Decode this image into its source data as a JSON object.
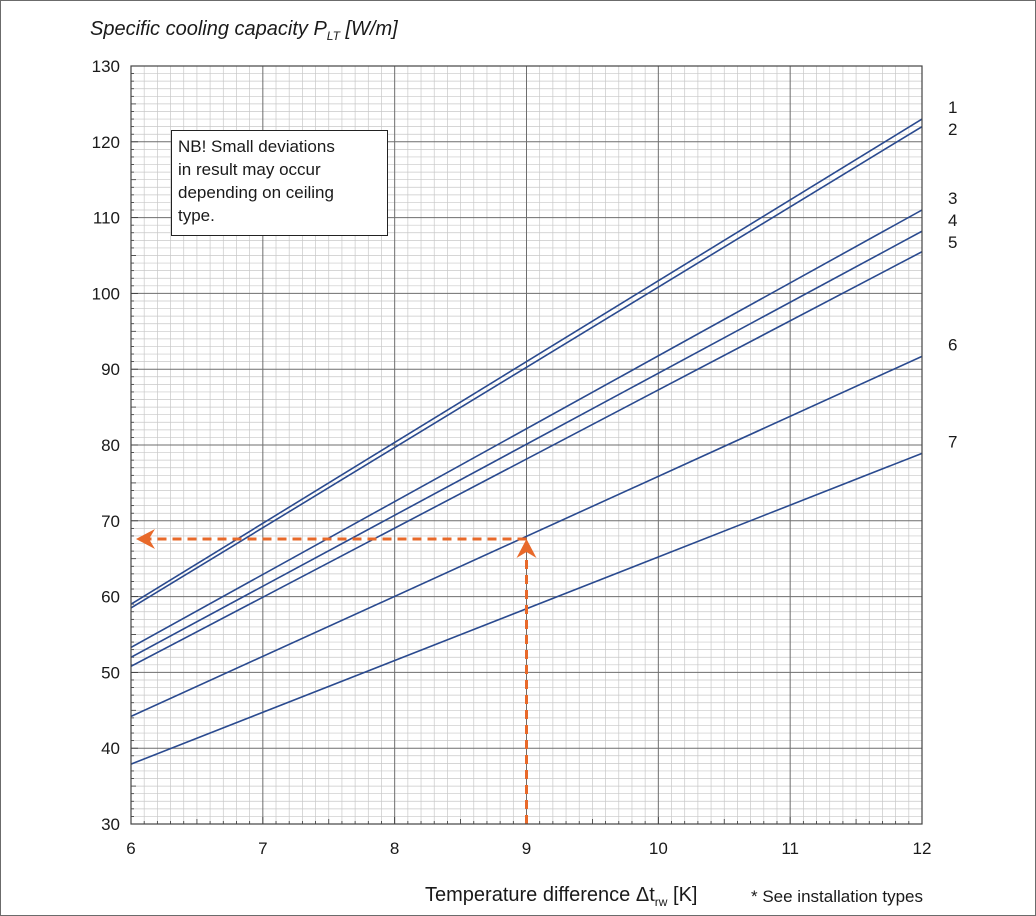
{
  "chart_data": {
    "type": "line",
    "title": "",
    "ylabel": {
      "main": "Specific cooling capacity P",
      "sub": "LT",
      "unit": " [W/m]"
    },
    "xlabel": {
      "main": "Temperature difference Δt",
      "sub": "rw",
      "unit": " [K]"
    },
    "xlim": [
      6,
      12
    ],
    "ylim": [
      30,
      130
    ],
    "x_ticks": [
      "6",
      "7",
      "8",
      "9",
      "10",
      "11",
      "12"
    ],
    "y_ticks": [
      "30",
      "40",
      "50",
      "60",
      "70",
      "80",
      "90",
      "100",
      "110",
      "120",
      "130"
    ],
    "grid": true,
    "series": [
      {
        "name": "1",
        "x": [
          6,
          12
        ],
        "y": [
          59.0,
          123.0
        ]
      },
      {
        "name": "2",
        "x": [
          6,
          12
        ],
        "y": [
          58.5,
          122.0
        ]
      },
      {
        "name": "3",
        "x": [
          6,
          12
        ],
        "y": [
          53.3,
          111.0
        ]
      },
      {
        "name": "4",
        "x": [
          6,
          12
        ],
        "y": [
          52.0,
          108.2
        ]
      },
      {
        "name": "5",
        "x": [
          6,
          12
        ],
        "y": [
          50.8,
          105.5
        ]
      },
      {
        "name": "6",
        "x": [
          6,
          12
        ],
        "y": [
          44.2,
          91.7
        ]
      },
      {
        "name": "7",
        "x": [
          6,
          12
        ],
        "y": [
          37.9,
          78.9
        ]
      }
    ],
    "annotation_example": {
      "x": 9,
      "y": 67.6
    },
    "note": [
      "NB! Small deviations",
      "in result may occur",
      "depending on ceiling",
      "type."
    ],
    "footnote": "* See installation types",
    "colors": {
      "lines": "#2a4a8f",
      "arrow": "#e8692a",
      "major_grid": "#6e6e6e",
      "minor_grid": "#c8c8c8"
    }
  }
}
